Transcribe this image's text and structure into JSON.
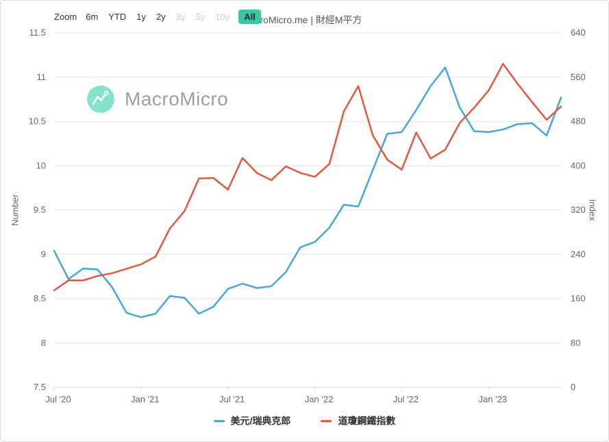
{
  "toolbar": {
    "zoom_label": "Zoom",
    "ranges": [
      {
        "label": "6m",
        "state": "enabled"
      },
      {
        "label": "YTD",
        "state": "enabled"
      },
      {
        "label": "1y",
        "state": "enabled"
      },
      {
        "label": "2y",
        "state": "enabled"
      },
      {
        "label": "3y",
        "state": "disabled"
      },
      {
        "label": "5y",
        "state": "disabled"
      },
      {
        "label": "10y",
        "state": "disabled"
      },
      {
        "label": "All",
        "state": "selected"
      }
    ],
    "watermark_text": "MacroMicro.me | 財經M平方",
    "selected_color": "#3ec5a3"
  },
  "watermark": {
    "brand": "MacroMicro",
    "icon_color": "#85e2cc"
  },
  "chart_data": {
    "type": "line",
    "x": [
      "2020-07",
      "2020-08",
      "2020-09",
      "2020-10",
      "2020-11",
      "2020-12",
      "2021-01",
      "2021-02",
      "2021-03",
      "2021-04",
      "2021-05",
      "2021-06",
      "2021-07",
      "2021-08",
      "2021-09",
      "2021-10",
      "2021-11",
      "2021-12",
      "2022-01",
      "2022-02",
      "2022-03",
      "2022-04",
      "2022-05",
      "2022-06",
      "2022-07",
      "2022-08",
      "2022-09",
      "2022-10",
      "2022-11",
      "2022-12",
      "2023-01",
      "2023-02",
      "2023-03",
      "2023-04",
      "2023-05",
      "2023-06"
    ],
    "x_ticks": [
      {
        "i": 0,
        "label": "Jul '20"
      },
      {
        "i": 6,
        "label": "Jan '21"
      },
      {
        "i": 12,
        "label": "Jul '21"
      },
      {
        "i": 18,
        "label": "Jan '22"
      },
      {
        "i": 24,
        "label": "Jul '22"
      },
      {
        "i": 30,
        "label": "Jan '23"
      }
    ],
    "series": [
      {
        "name": "美元/瑞典克郎",
        "axis": "left",
        "color": "#43a8d9",
        "values": [
          9.04,
          8.72,
          8.84,
          8.83,
          8.63,
          8.34,
          8.29,
          8.33,
          8.53,
          8.51,
          8.33,
          8.41,
          8.61,
          8.67,
          8.62,
          8.64,
          8.8,
          9.08,
          9.14,
          9.3,
          9.56,
          9.54,
          9.95,
          10.36,
          10.38,
          10.63,
          10.9,
          11.11,
          10.66,
          10.39,
          10.38,
          10.41,
          10.47,
          10.48,
          10.34,
          10.77
        ]
      },
      {
        "name": "道瓊鋼鐵指數",
        "axis": "right",
        "color": "#e4573c",
        "values": [
          175,
          193,
          193,
          201,
          206,
          214,
          222,
          236,
          287,
          318,
          377,
          378,
          357,
          414,
          387,
          374,
          399,
          387,
          380,
          403,
          498,
          544,
          455,
          411,
          393,
          460,
          413,
          429,
          477,
          505,
          536,
          584,
          548,
          515,
          483,
          507
        ]
      }
    ],
    "left_axis": {
      "title": "Number",
      "min": 7.5,
      "max": 11.5,
      "ticks": [
        7.5,
        8,
        8.5,
        9,
        9.5,
        10,
        10.5,
        11,
        11.5
      ]
    },
    "right_axis": {
      "title": "Index",
      "min": 0,
      "max": 640,
      "ticks": [
        0,
        80,
        160,
        240,
        320,
        400,
        480,
        560,
        640
      ]
    },
    "grid": true,
    "legend_position": "bottom",
    "grid_color": "#e6e6e6",
    "axis_line_color": "#ccd6eb",
    "tick_label_color": "#666666"
  }
}
